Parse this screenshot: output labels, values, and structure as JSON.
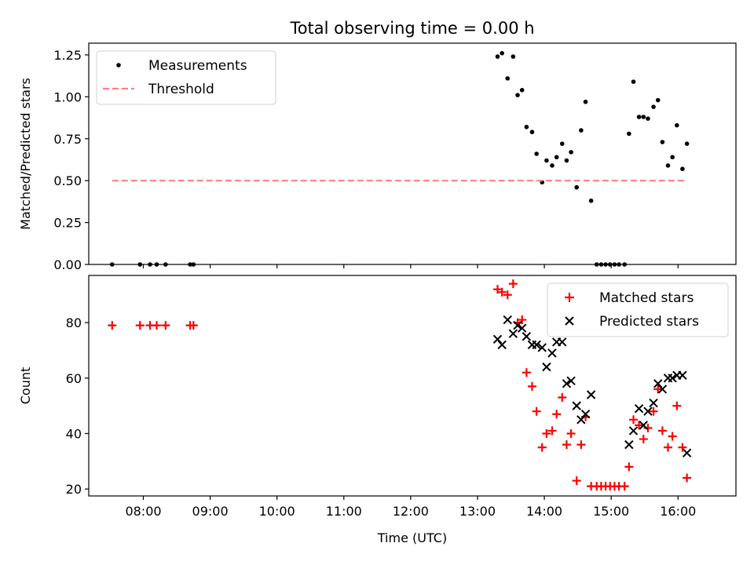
{
  "title": "Total observing time = 0.00 h",
  "chart_data": [
    {
      "type": "scatter",
      "ylabel": "Matched/Predicted stars",
      "xlabel": "",
      "xlim": [
        "07:11",
        "16:52"
      ],
      "ylim": [
        0,
        1.32
      ],
      "yticks": [
        0.0,
        0.25,
        0.5,
        0.75,
        1.0,
        1.25
      ],
      "ytick_labels": [
        "0.00",
        "0.25",
        "0.50",
        "0.75",
        "1.00",
        "1.25"
      ],
      "xticks": [
        "08:00",
        "09:00",
        "10:00",
        "11:00",
        "12:00",
        "13:00",
        "14:00",
        "15:00",
        "16:00"
      ],
      "legend_position": "top-left",
      "series": [
        {
          "name": "Measurements",
          "kind": "scatter",
          "color": "#000000",
          "points": [
            [
              "07:32",
              0
            ],
            [
              "07:57",
              0
            ],
            [
              "08:06",
              0
            ],
            [
              "08:12",
              0
            ],
            [
              "08:20",
              0
            ],
            [
              "08:42",
              0
            ],
            [
              "08:45",
              0
            ],
            [
              "13:18",
              1.24
            ],
            [
              "13:22",
              1.26
            ],
            [
              "13:27",
              1.11
            ],
            [
              "13:32",
              1.24
            ],
            [
              "13:36",
              1.01
            ],
            [
              "13:40",
              1.04
            ],
            [
              "13:44",
              0.82
            ],
            [
              "13:49",
              0.79
            ],
            [
              "13:53",
              0.66
            ],
            [
              "13:58",
              0.49
            ],
            [
              "14:02",
              0.62
            ],
            [
              "14:07",
              0.59
            ],
            [
              "14:11",
              0.64
            ],
            [
              "14:16",
              0.72
            ],
            [
              "14:20",
              0.62
            ],
            [
              "14:24",
              0.67
            ],
            [
              "14:29",
              0.46
            ],
            [
              "14:33",
              0.8
            ],
            [
              "14:37",
              0.97
            ],
            [
              "14:42",
              0.38
            ],
            [
              "14:47",
              0
            ],
            [
              "14:51",
              0
            ],
            [
              "14:55",
              0
            ],
            [
              "14:59",
              0
            ],
            [
              "15:03",
              0
            ],
            [
              "15:07",
              0
            ],
            [
              "15:12",
              0
            ],
            [
              "15:16",
              0.78
            ],
            [
              "15:20",
              1.09
            ],
            [
              "15:25",
              0.88
            ],
            [
              "15:29",
              0.88
            ],
            [
              "15:33",
              0.87
            ],
            [
              "15:38",
              0.94
            ],
            [
              "15:42",
              0.98
            ],
            [
              "15:46",
              0.73
            ],
            [
              "15:51",
              0.59
            ],
            [
              "15:55",
              0.64
            ],
            [
              "15:59",
              0.83
            ],
            [
              "16:04",
              0.57
            ],
            [
              "16:08",
              0.72
            ]
          ]
        },
        {
          "name": "Threshold",
          "kind": "line",
          "style": "dashed",
          "color": "#ff7f7f",
          "points": [
            [
              "07:32",
              0.5
            ],
            [
              "16:08",
              0.5
            ]
          ]
        }
      ]
    },
    {
      "type": "scatter",
      "ylabel": "Count",
      "xlabel": "Time (UTC)",
      "xlim": [
        "07:11",
        "16:52"
      ],
      "ylim": [
        17.5,
        97
      ],
      "yticks": [
        20,
        40,
        60,
        80
      ],
      "ytick_labels": [
        "20",
        "40",
        "60",
        "80"
      ],
      "xticks": [
        "08:00",
        "09:00",
        "10:00",
        "11:00",
        "12:00",
        "13:00",
        "14:00",
        "15:00",
        "16:00"
      ],
      "legend_position": "top-right",
      "series": [
        {
          "name": "Matched stars",
          "marker": "plus",
          "color": "#ff0000",
          "points": [
            [
              "07:32",
              79
            ],
            [
              "07:57",
              79
            ],
            [
              "08:06",
              79
            ],
            [
              "08:12",
              79
            ],
            [
              "08:20",
              79
            ],
            [
              "08:42",
              79
            ],
            [
              "08:45",
              79
            ],
            [
              "13:18",
              92
            ],
            [
              "13:22",
              91
            ],
            [
              "13:27",
              90
            ],
            [
              "13:32",
              94
            ],
            [
              "13:36",
              80
            ],
            [
              "13:40",
              81
            ],
            [
              "13:44",
              62
            ],
            [
              "13:49",
              57
            ],
            [
              "13:53",
              48
            ],
            [
              "13:58",
              35
            ],
            [
              "14:02",
              40
            ],
            [
              "14:07",
              41
            ],
            [
              "14:11",
              47
            ],
            [
              "14:16",
              53
            ],
            [
              "14:20",
              36
            ],
            [
              "14:24",
              40
            ],
            [
              "14:29",
              23
            ],
            [
              "14:33",
              36
            ],
            [
              "14:37",
              46
            ],
            [
              "14:42",
              21
            ],
            [
              "14:47",
              21
            ],
            [
              "14:51",
              21
            ],
            [
              "14:55",
              21
            ],
            [
              "14:59",
              21
            ],
            [
              "15:03",
              21
            ],
            [
              "15:07",
              21
            ],
            [
              "15:12",
              21
            ],
            [
              "15:16",
              28
            ],
            [
              "15:20",
              45
            ],
            [
              "15:25",
              43
            ],
            [
              "15:29",
              38
            ],
            [
              "15:33",
              42
            ],
            [
              "15:38",
              48
            ],
            [
              "15:42",
              56
            ],
            [
              "15:46",
              41
            ],
            [
              "15:51",
              35
            ],
            [
              "15:55",
              39
            ],
            [
              "15:59",
              50
            ],
            [
              "16:04",
              35
            ],
            [
              "16:08",
              24
            ]
          ]
        },
        {
          "name": "Predicted stars",
          "marker": "x",
          "color": "#000000",
          "points": [
            [
              "13:18",
              74
            ],
            [
              "13:22",
              72
            ],
            [
              "13:27",
              81
            ],
            [
              "13:32",
              76
            ],
            [
              "13:36",
              79
            ],
            [
              "13:40",
              78
            ],
            [
              "13:44",
              75
            ],
            [
              "13:49",
              72
            ],
            [
              "13:53",
              72
            ],
            [
              "13:58",
              71
            ],
            [
              "14:02",
              64
            ],
            [
              "14:07",
              69
            ],
            [
              "14:11",
              73
            ],
            [
              "14:16",
              73
            ],
            [
              "14:20",
              58
            ],
            [
              "14:24",
              59
            ],
            [
              "14:29",
              50
            ],
            [
              "14:33",
              45
            ],
            [
              "14:37",
              47
            ],
            [
              "14:42",
              54
            ],
            [
              "15:16",
              36
            ],
            [
              "15:20",
              41
            ],
            [
              "15:25",
              49
            ],
            [
              "15:29",
              43
            ],
            [
              "15:33",
              48
            ],
            [
              "15:38",
              51
            ],
            [
              "15:42",
              58
            ],
            [
              "15:46",
              56
            ],
            [
              "15:51",
              60
            ],
            [
              "15:55",
              60
            ],
            [
              "15:59",
              61
            ],
            [
              "16:04",
              61
            ],
            [
              "16:08",
              33
            ]
          ]
        }
      ]
    }
  ]
}
